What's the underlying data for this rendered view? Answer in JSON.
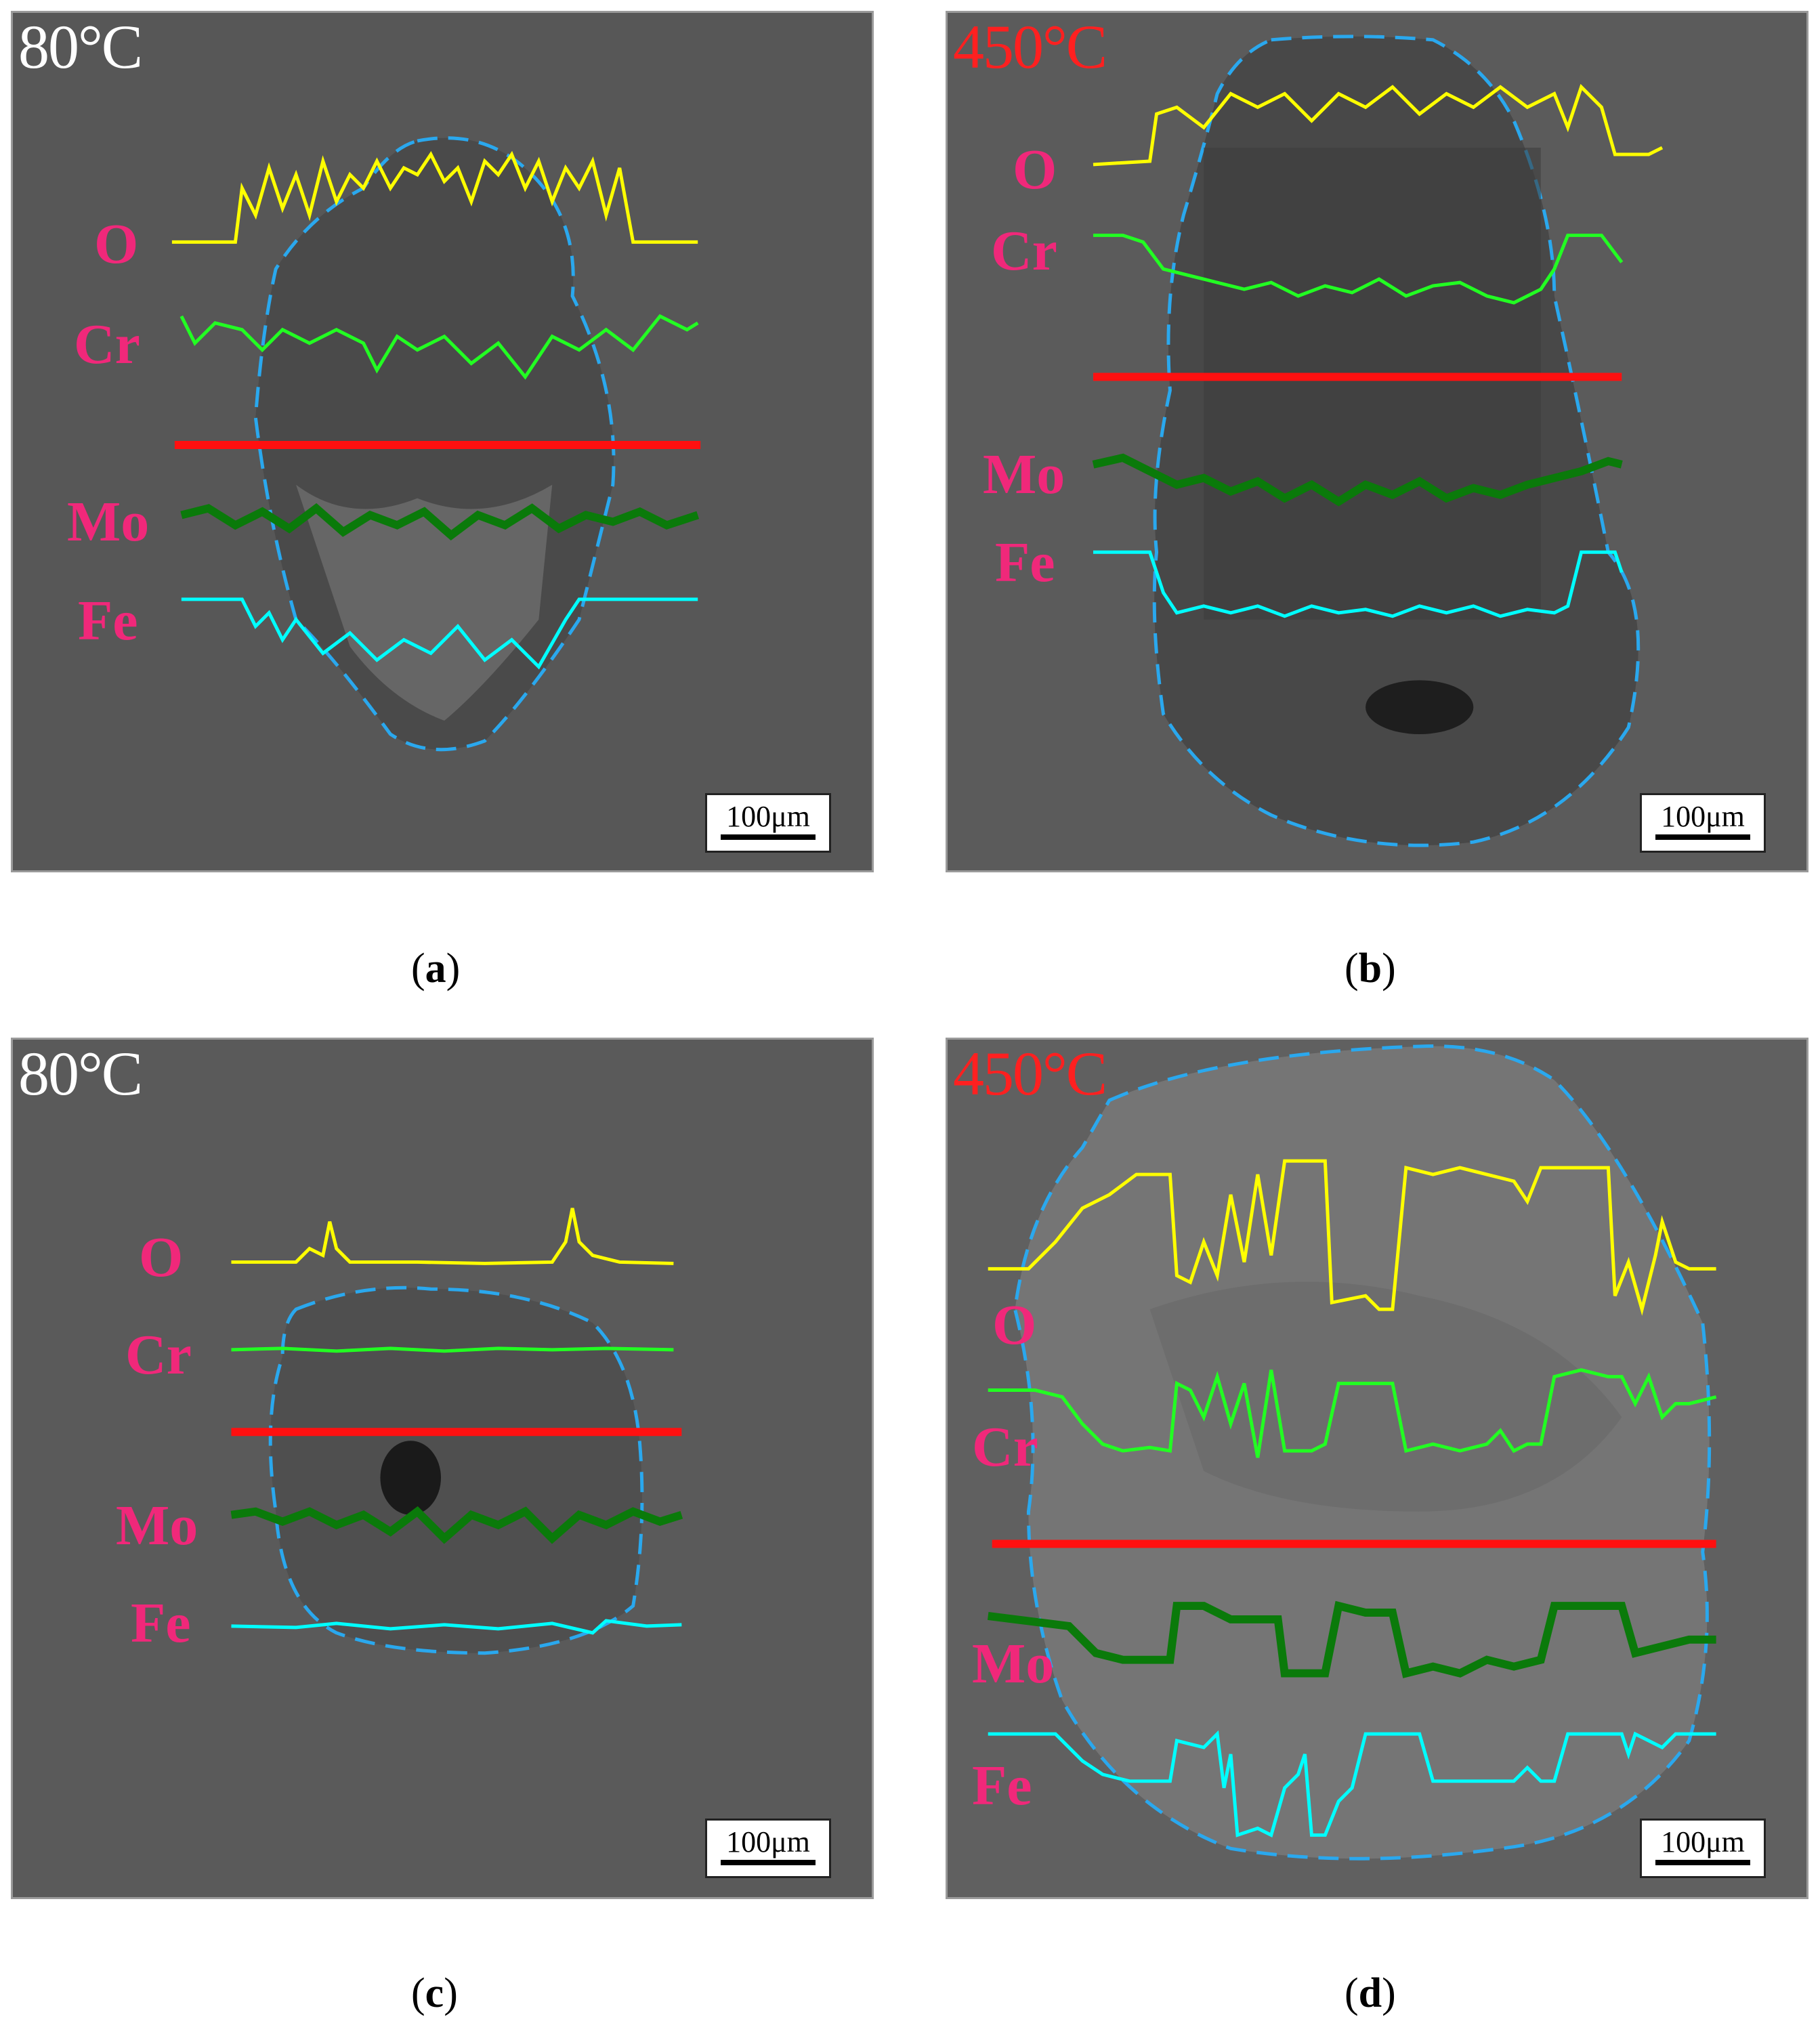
{
  "panels": [
    {
      "id": "a",
      "temperature": "80°C",
      "temp_style": "cold",
      "scale_bar": "100μm",
      "caption": "a",
      "elements": [
        "O",
        "Cr",
        "Mo",
        "Fe"
      ]
    },
    {
      "id": "b",
      "temperature": "450°C",
      "temp_style": "hot",
      "scale_bar": "100μm",
      "caption": "b",
      "elements": [
        "O",
        "Cr",
        "Mo",
        "Fe"
      ]
    },
    {
      "id": "c",
      "temperature": "80°C",
      "temp_style": "cold",
      "scale_bar": "100μm",
      "caption": "c",
      "elements": [
        "O",
        "Cr",
        "Mo",
        "Fe"
      ]
    },
    {
      "id": "d",
      "temperature": "450°C",
      "temp_style": "hot",
      "scale_bar": "100μm",
      "caption": "d",
      "elements": [
        "O",
        "Cr",
        "Mo",
        "Fe"
      ]
    }
  ],
  "colors": {
    "O": "#ffff00",
    "Cr": "#22ff22",
    "Mo": "#0a7a0a",
    "Fe": "#00ffff",
    "scan_line": "#ff1010",
    "wear_outline": "#2aa8ee",
    "element_label": "#f0287a"
  }
}
